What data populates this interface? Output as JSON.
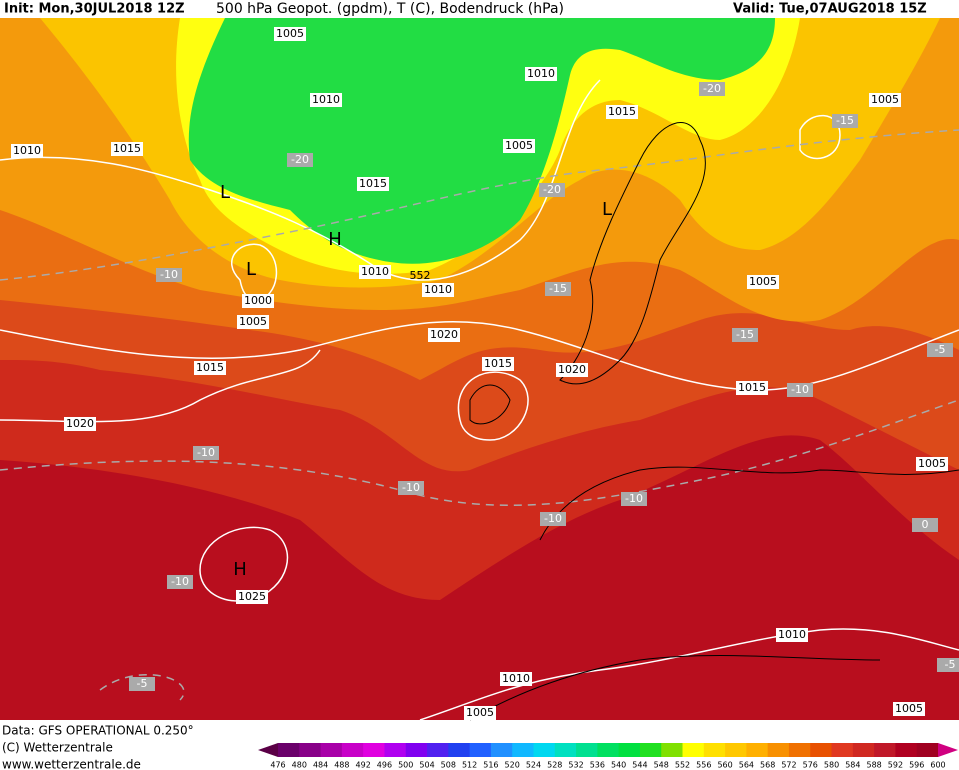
{
  "header": {
    "init": "Init: Mon,30JUL2018 12Z",
    "title": "500 hPa Geopot. (gpdm), T (C), Bodendruck (hPa)",
    "valid": "Valid: Tue,07AUG2018 15Z"
  },
  "map": {
    "isobar_labels": [
      "1005",
      "1010",
      "1010",
      "1015",
      "1005",
      "1010",
      "1015",
      "1005",
      "1015",
      "1010",
      "1010",
      "1000",
      "1005",
      "1020",
      "1015",
      "1020",
      "1005",
      "1015",
      "1015",
      "1020",
      "1005",
      "1025",
      "1010",
      "1010",
      "1005",
      "1005"
    ],
    "geopotential_labels": [
      "552"
    ],
    "temperature_labels": [
      "-20",
      "-20",
      "-20",
      "-15",
      "-10",
      "-15",
      "-15",
      "-10",
      "-5",
      "-10",
      "-10",
      "-10",
      "-10",
      "-10",
      "-5",
      "-5",
      "0"
    ],
    "pressure_centers": [
      "L",
      "L",
      "H",
      "L",
      "H"
    ]
  },
  "footer": {
    "data": "Data: GFS OPERATIONAL 0.250°",
    "copyright": "(C) Wetterzentrale",
    "url": "www.wetterzentrale.de"
  },
  "colorbar": {
    "ticks": [
      476,
      480,
      484,
      488,
      492,
      496,
      500,
      504,
      508,
      512,
      516,
      520,
      524,
      528,
      532,
      536,
      540,
      544,
      548,
      552,
      556,
      560,
      564,
      568,
      572,
      576,
      580,
      584,
      588,
      592,
      596,
      600
    ],
    "colors": [
      "#5a0046",
      "#6a006a",
      "#880088",
      "#a800a8",
      "#c800c8",
      "#e000e0",
      "#b000f0",
      "#8000f0",
      "#5020f0",
      "#2040f0",
      "#2060ff",
      "#2090ff",
      "#10b8ff",
      "#00d8f0",
      "#00e0c0",
      "#00e090",
      "#00e060",
      "#00e040",
      "#20e020",
      "#80e000",
      "#ffff00",
      "#ffe000",
      "#ffc800",
      "#ffb000",
      "#f89000",
      "#f07000",
      "#e85000",
      "#e03820",
      "#d02820",
      "#c01828",
      "#b00020",
      "#a00020",
      "#d00080"
    ]
  }
}
